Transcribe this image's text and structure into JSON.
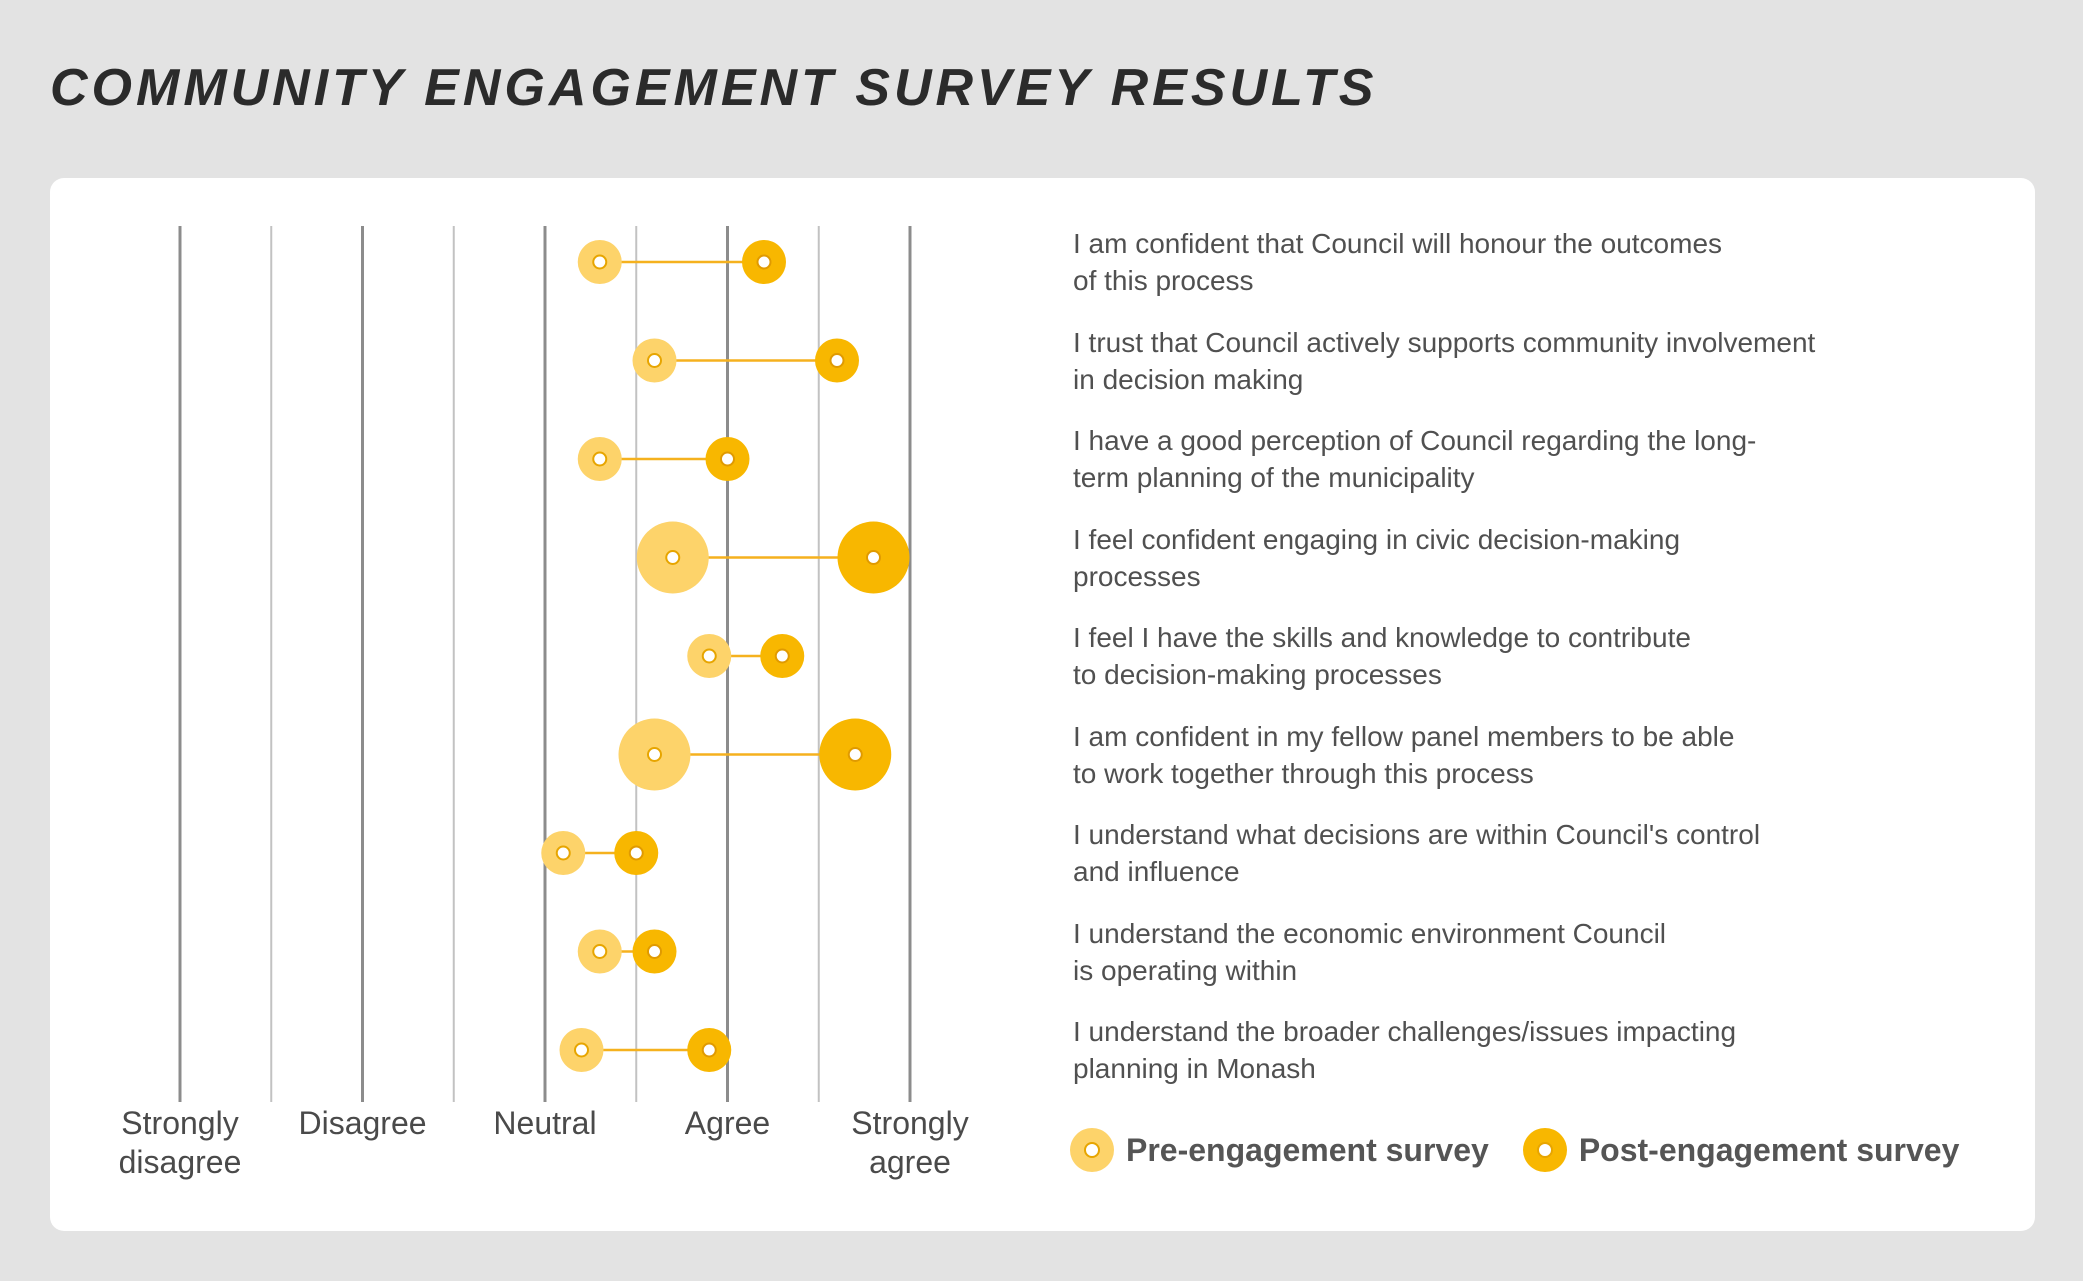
{
  "title": "COMMUNITY ENGAGEMENT SURVEY RESULTS",
  "colors": {
    "pre": "#fdd36a",
    "post": "#f8b700",
    "connector": "#f5b11e",
    "major_gridline": "#8c8c8c",
    "minor_gridline": "#c2c2c2"
  },
  "chart_data": {
    "type": "dumbbell",
    "title": "COMMUNITY ENGAGEMENT SURVEY RESULTS",
    "x_scale": {
      "min": 1,
      "max": 5,
      "step": 0.5,
      "ticks": [
        {
          "value": 1,
          "label": [
            "Strongly",
            "disagree"
          ]
        },
        {
          "value": 2,
          "label": [
            "Disagree"
          ]
        },
        {
          "value": 3,
          "label": [
            "Neutral"
          ]
        },
        {
          "value": 4,
          "label": [
            "Agree"
          ]
        },
        {
          "value": 5,
          "label": [
            "Strongly",
            "agree"
          ]
        }
      ]
    },
    "grid": true,
    "legend": {
      "placement": "bottom-right",
      "items": [
        "Pre-engagement survey",
        "Post-engagement survey"
      ]
    },
    "series": [
      {
        "name": "Pre-engagement survey",
        "role": "pre"
      },
      {
        "name": "Post-engagement survey",
        "role": "post"
      }
    ],
    "rows": [
      {
        "label": [
          "I am confident that Council will honour the outcomes",
          "of this process"
        ],
        "pre": 3.3,
        "post": 4.2,
        "pre_size": 1,
        "post_size": 1
      },
      {
        "label": [
          "I trust that Council actively supports community involvement",
          "in decision making"
        ],
        "pre": 3.6,
        "post": 4.6,
        "pre_size": 1,
        "post_size": 1
      },
      {
        "label": [
          "I have a good perception of Council regarding the long-",
          "term planning of the municipality"
        ],
        "pre": 3.3,
        "post": 4.0,
        "pre_size": 1,
        "post_size": 1
      },
      {
        "label": [
          "I feel confident engaging in civic decision-making",
          "processes"
        ],
        "pre": 3.7,
        "post": 4.8,
        "pre_size": 2,
        "post_size": 2
      },
      {
        "label": [
          "I feel I have the skills and knowledge to contribute",
          "to decision-making processes"
        ],
        "pre": 3.9,
        "post": 4.3,
        "pre_size": 1,
        "post_size": 1
      },
      {
        "label": [
          "I am confident in my fellow panel members to be able",
          "to work together through this process"
        ],
        "pre": 3.6,
        "post": 4.7,
        "pre_size": 2,
        "post_size": 2
      },
      {
        "label": [
          "I understand what decisions are within Council's control",
          "and influence"
        ],
        "pre": 3.1,
        "post": 3.5,
        "pre_size": 1,
        "post_size": 1
      },
      {
        "label": [
          "I understand the economic environment Council",
          "is operating within"
        ],
        "pre": 3.3,
        "post": 3.6,
        "pre_size": 1,
        "post_size": 1
      },
      {
        "label": [
          "I understand the broader challenges/issues impacting",
          "planning in Monash"
        ],
        "pre": 3.2,
        "post": 3.9,
        "pre_size": 1,
        "post_size": 1
      }
    ]
  }
}
